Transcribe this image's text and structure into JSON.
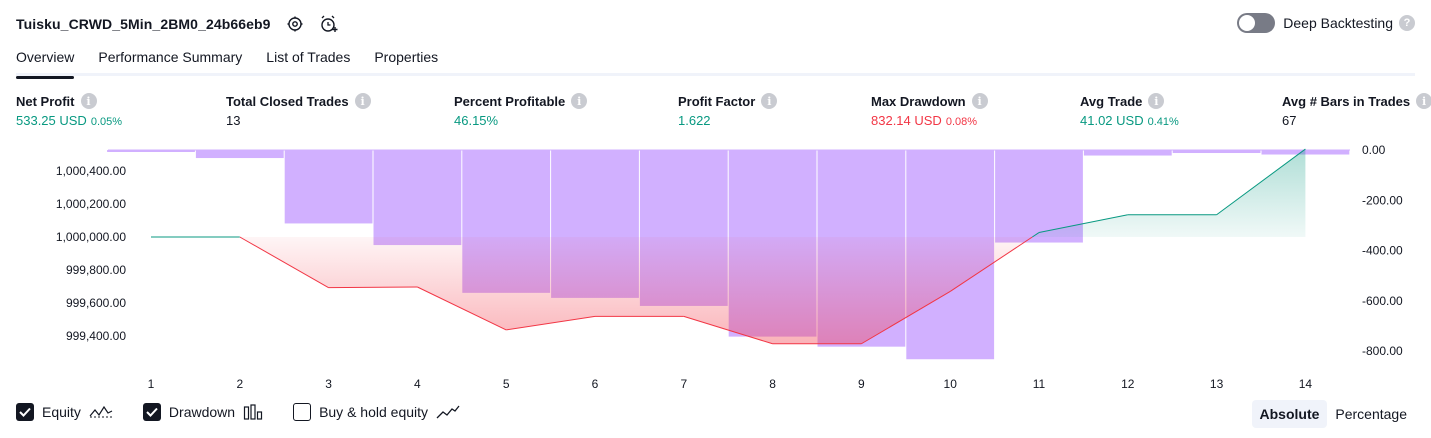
{
  "header": {
    "strategy_title": "Tuisku_CRWD_5Min_2BM0_24b66eb9",
    "settings_icon": "gear-icon",
    "alert_icon": "alarm-clock-plus-icon"
  },
  "deep_backtesting": {
    "label": "Deep Backtesting",
    "enabled": false,
    "help": "?"
  },
  "tabs": [
    {
      "label": "Overview",
      "active": true
    },
    {
      "label": "Performance Summary",
      "active": false
    },
    {
      "label": "List of Trades",
      "active": false
    },
    {
      "label": "Properties",
      "active": false
    }
  ],
  "metrics": {
    "net_profit": {
      "label": "Net Profit",
      "value": "533.25 USD",
      "pct": "0.05%"
    },
    "total_closed_trades": {
      "label": "Total Closed Trades",
      "value": "13"
    },
    "percent_profitable": {
      "label": "Percent Profitable",
      "value": "46.15%"
    },
    "profit_factor": {
      "label": "Profit Factor",
      "value": "1.622"
    },
    "max_drawdown": {
      "label": "Max Drawdown",
      "value": "832.14 USD",
      "pct": "0.08%"
    },
    "avg_trade": {
      "label": "Avg Trade",
      "value": "41.02 USD",
      "pct": "0.41%"
    },
    "avg_bars": {
      "label": "Avg # Bars in Trades",
      "value": "67"
    },
    "info_glyph": "i"
  },
  "colors": {
    "positive": "#089981",
    "negative": "#f23645",
    "drawdown_bar": "#d1b0ff",
    "equity_line_up": "#089981",
    "equity_line_down": "#f23645"
  },
  "chart_data": {
    "type": "area",
    "x": [
      1,
      2,
      3,
      4,
      5,
      6,
      7,
      8,
      9,
      10,
      11,
      12,
      13,
      14
    ],
    "left_axis": {
      "ticks": [
        "1,000,400.00",
        "1,000,200.00",
        "1,000,000.00",
        "999,800.00",
        "999,600.00",
        "999,400.00"
      ],
      "tick_values": [
        1000400,
        1000200,
        1000000,
        999800,
        999600,
        999400
      ]
    },
    "right_axis": {
      "ticks": [
        "0.00",
        "-200.00",
        "-400.00",
        "-600.00",
        "-800.00"
      ],
      "tick_values": [
        0,
        -200,
        -400,
        -600,
        -800
      ]
    },
    "series": [
      {
        "name": "Equity",
        "baseline": 1000000,
        "values": [
          1000000,
          1000000,
          999693,
          999697,
          999437,
          999519,
          999519,
          999353,
          999353,
          999670,
          1000027,
          1000135,
          1000135,
          1000533
        ]
      },
      {
        "name": "Drawdown",
        "values": [
          -4,
          -32,
          -292,
          -378,
          -568,
          -588,
          -620,
          -742,
          -782,
          -832,
          -368,
          -22,
          -12,
          -18
        ]
      }
    ]
  },
  "legend": {
    "equity": {
      "label": "Equity",
      "checked": true
    },
    "drawdown": {
      "label": "Drawdown",
      "checked": true
    },
    "buy_hold": {
      "label": "Buy & hold equity",
      "checked": false
    }
  },
  "view_mode": {
    "absolute": "Absolute",
    "percentage": "Percentage",
    "active": "absolute"
  }
}
